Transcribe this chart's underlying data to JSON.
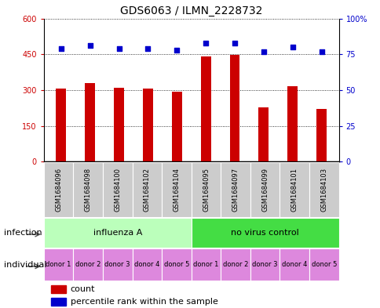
{
  "title": "GDS6063 / ILMN_2228732",
  "samples": [
    "GSM1684096",
    "GSM1684098",
    "GSM1684100",
    "GSM1684102",
    "GSM1684104",
    "GSM1684095",
    "GSM1684097",
    "GSM1684099",
    "GSM1684101",
    "GSM1684103"
  ],
  "counts": [
    305,
    330,
    310,
    305,
    292,
    440,
    447,
    227,
    315,
    220
  ],
  "percentile_ranks": [
    79,
    81,
    79,
    79,
    78,
    83,
    83,
    77,
    80,
    77
  ],
  "ylim_left": [
    0,
    600
  ],
  "ylim_right": [
    0,
    100
  ],
  "yticks_left": [
    0,
    150,
    300,
    450,
    600
  ],
  "ytick_labels_left": [
    "0",
    "150",
    "300",
    "450",
    "600"
  ],
  "yticks_right": [
    0,
    25,
    50,
    75,
    100
  ],
  "ytick_labels_right": [
    "0",
    "25",
    "50",
    "75",
    "100%"
  ],
  "bar_color": "#cc0000",
  "dot_color": "#0000cc",
  "grid_color": "black",
  "infection_groups": [
    {
      "label": "influenza A",
      "start": 0,
      "end": 5,
      "color": "#bbffbb"
    },
    {
      "label": "no virus control",
      "start": 5,
      "end": 10,
      "color": "#44dd44"
    }
  ],
  "individual_labels": [
    "donor 1",
    "donor 2",
    "donor 3",
    "donor 4",
    "donor 5",
    "donor 1",
    "donor 2",
    "donor 3",
    "donor 4",
    "donor 5"
  ],
  "individual_color": "#dd88dd",
  "infection_label": "infection",
  "individual_label_left": "individual",
  "legend_count_label": "count",
  "legend_percentile_label": "percentile rank within the sample",
  "bar_width": 0.35,
  "dot_size": 18,
  "title_fontsize": 10,
  "tick_fontsize": 7,
  "label_fontsize": 8,
  "annotation_fontsize": 8,
  "sample_fontsize": 6,
  "bg_color": "#ffffff",
  "sample_bg_color": "#cccccc",
  "sample_border_color": "#ffffff"
}
